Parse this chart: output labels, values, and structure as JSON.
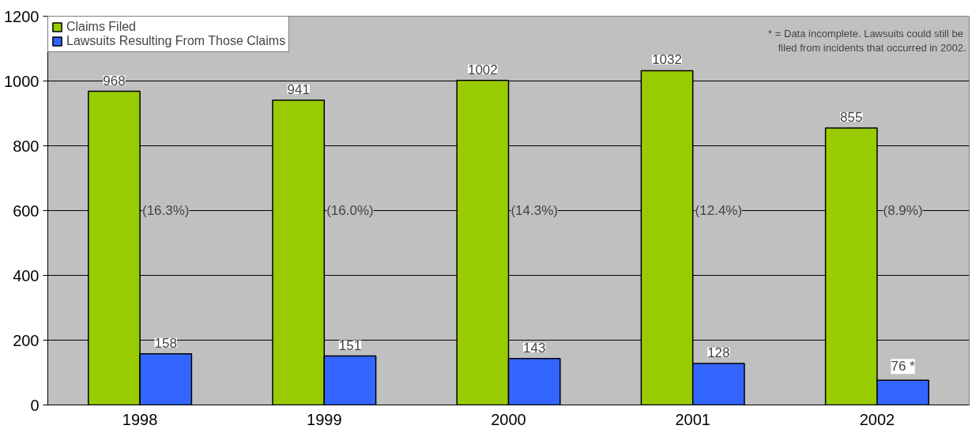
{
  "chart_data": {
    "type": "bar",
    "categories": [
      "1998",
      "1999",
      "2000",
      "2001",
      "2002"
    ],
    "series": [
      {
        "name": "Claims Filed",
        "color": "#99cc00",
        "values": [
          968,
          941,
          1002,
          1032,
          855
        ],
        "value_labels": [
          "968",
          "941",
          "1002",
          "1032",
          "855"
        ]
      },
      {
        "name": "Lawsuits Resulting From Those Claims",
        "color": "#3366ff",
        "values": [
          158,
          151,
          143,
          128,
          76
        ],
        "value_labels": [
          "158",
          "151",
          "143",
          "128",
          "76 *"
        ]
      }
    ],
    "ylim": [
      0,
      1200
    ],
    "yticks": [
      0,
      200,
      400,
      600,
      800,
      1000,
      1200
    ],
    "grid": "y",
    "legend": "top left",
    "annotations": [
      {
        "text": "(16.3%)",
        "x": "1998",
        "y": 600
      },
      {
        "text": "(16.0%)",
        "x": "1999",
        "y": 600
      },
      {
        "text": "(14.3%)",
        "x": "2000",
        "y": 600
      },
      {
        "text": "(12.4%)",
        "x": "2001",
        "y": 600
      },
      {
        "text": "(8.9%)",
        "x": "2002",
        "y": 600
      },
      "* = Data incomplete.  Lawsuits could still be\nfiled from incidents that occurred in 2002."
    ]
  }
}
